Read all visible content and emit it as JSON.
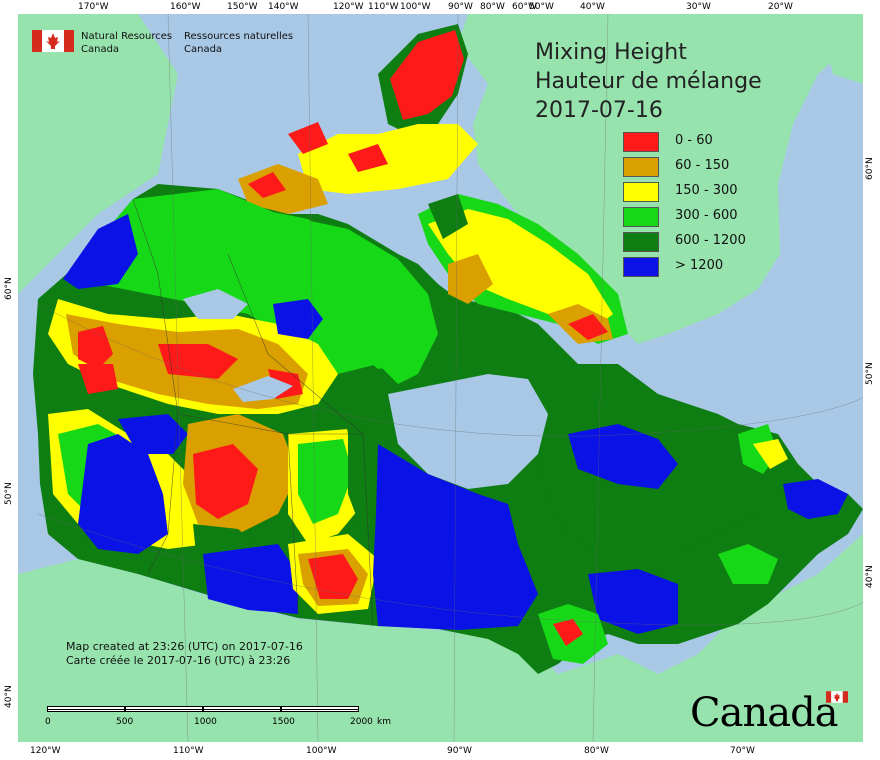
{
  "title": {
    "line1": "Mixing Height",
    "line2": "Hauteur de mélange",
    "date": "2017-07-16"
  },
  "agency": {
    "name_en_1": "Natural Resources",
    "name_en_2": "Canada",
    "name_fr_1": "Ressources naturelles",
    "name_fr_2": "Canada"
  },
  "legend": [
    {
      "label": "0 - 60",
      "color": "#ff1a1a"
    },
    {
      "label": "60 - 150",
      "color": "#daa000"
    },
    {
      "label": "150 - 300",
      "color": "#ffff00"
    },
    {
      "label": "300 - 600",
      "color": "#17d817"
    },
    {
      "label": "600 - 1200",
      "color": "#0e7d12"
    },
    {
      "label": "> 1200",
      "color": "#0a12e6"
    }
  ],
  "created": {
    "en": "Map created at 23:26 (UTC) on 2017-07-16",
    "fr": "Carte créée le 2017-07-16 (UTC) à 23:26"
  },
  "scalebar": {
    "labels": [
      "0",
      "500",
      "1000",
      "1500",
      "2000"
    ],
    "unit": "km"
  },
  "wordmark": "Canada",
  "colors": {
    "ocean": "#a8c8e6",
    "land_other": "#97e3ae",
    "border": "#333333"
  },
  "graticule": {
    "top": [
      "170°W",
      "160°W",
      "150°W",
      "140°W",
      "120°W",
      "110°W",
      "100°W",
      "90°W",
      "80°W",
      "60°W",
      "50°W",
      "40°W",
      "30°W",
      "20°W"
    ],
    "bottom": [
      "120°W",
      "110°W",
      "100°W",
      "90°W",
      "80°W",
      "70°W"
    ],
    "left": [
      "60°N",
      "50°N",
      "40°N"
    ],
    "right": [
      "60°N",
      "50°N",
      "40°N"
    ]
  }
}
